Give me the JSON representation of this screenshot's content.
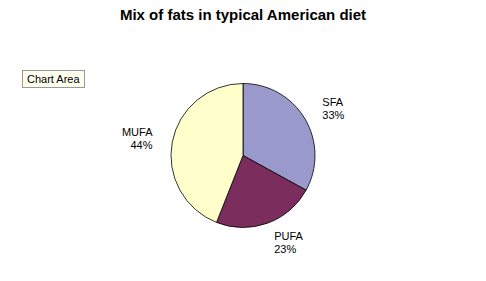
{
  "chart_data": {
    "type": "pie",
    "title": "Mix of fats in typical American diet",
    "categories": [
      "SFA",
      "PUFA",
      "MUFA"
    ],
    "values": [
      33,
      23,
      44
    ],
    "value_labels": [
      "33%",
      "23%",
      "44%"
    ],
    "data_labels": true,
    "colors": [
      "#9999cc",
      "#7b2d5e",
      "#ffffcc"
    ],
    "annotations": [
      "Chart Area"
    ]
  }
}
